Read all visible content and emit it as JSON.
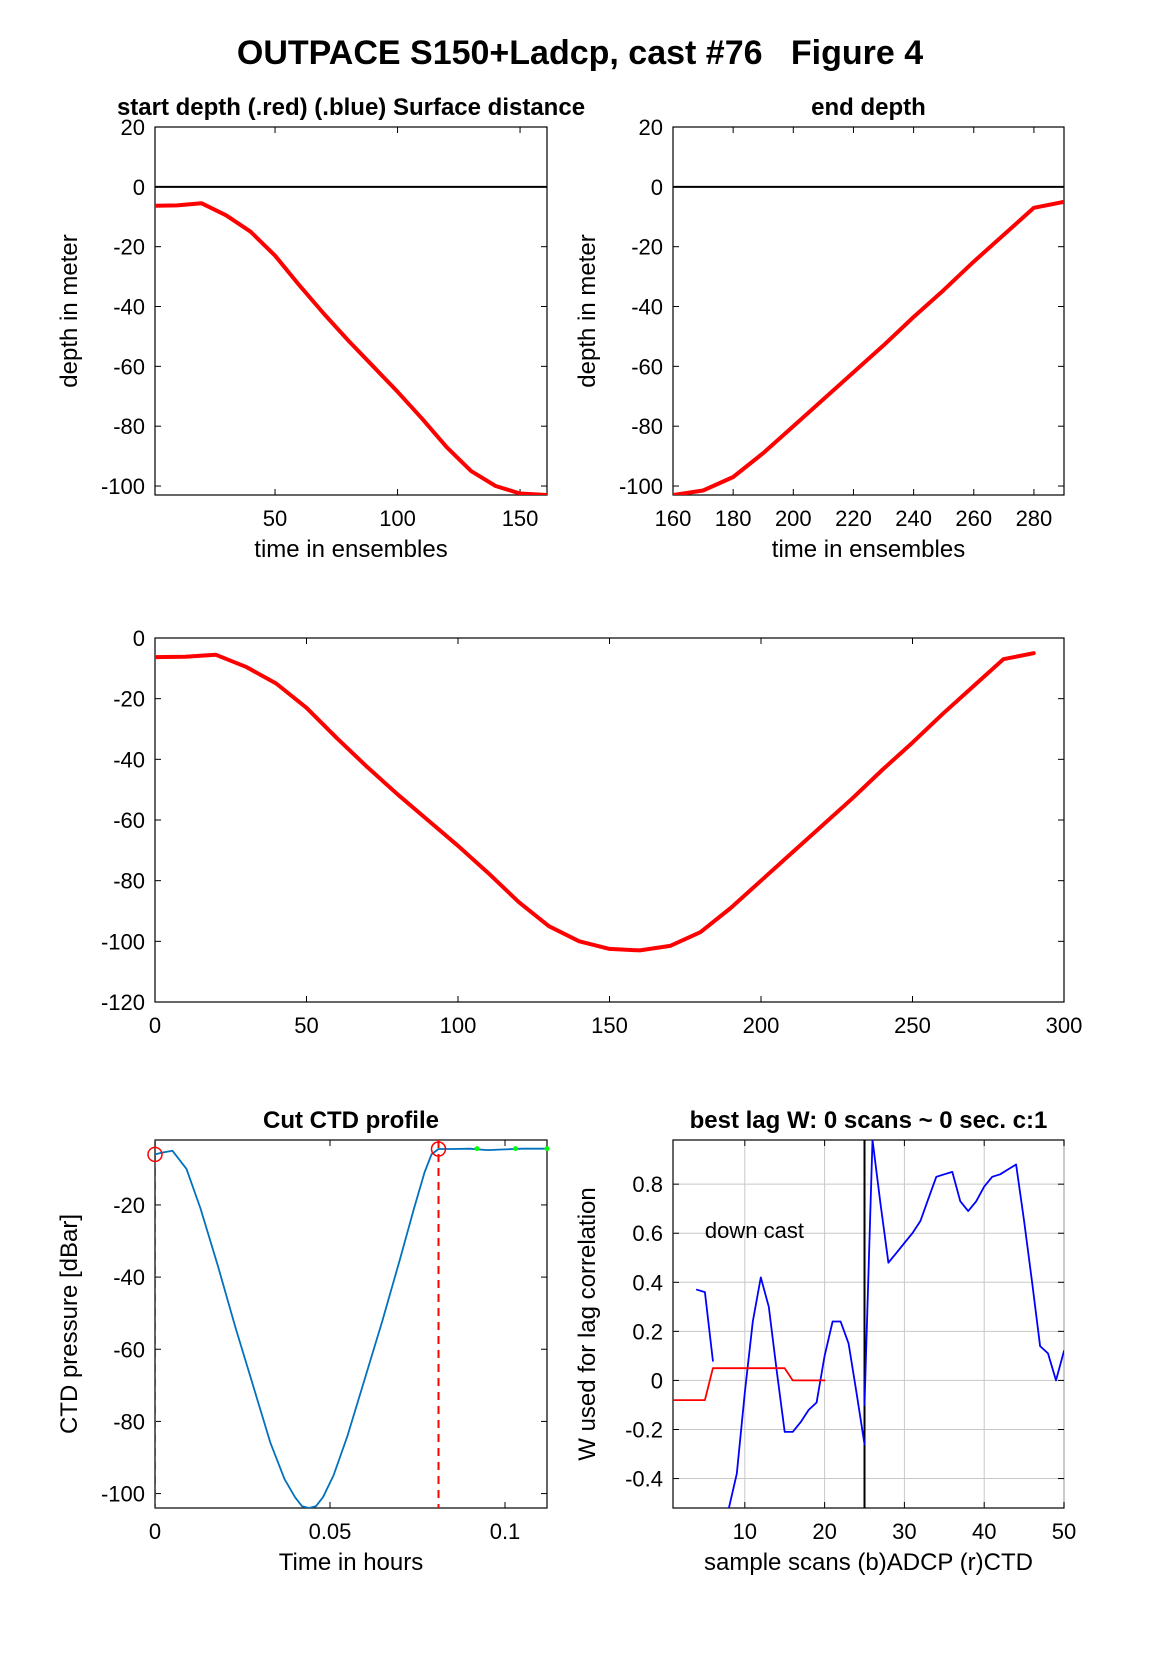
{
  "figure": {
    "title": "OUTPACE S150+Ladcp, cast #76   Figure 4"
  },
  "chart_data": [
    {
      "id": "start_depth",
      "type": "line",
      "title": "start depth (.red) (.blue) Surface distance",
      "xlabel": "time in ensembles",
      "ylabel": "depth in meter",
      "xlim": [
        1,
        161
      ],
      "ylim": [
        -103,
        20
      ],
      "xticks": [
        50,
        100,
        150
      ],
      "yticks": [
        20,
        0,
        -20,
        -40,
        -60,
        -80,
        -100
      ],
      "reference_line_y": 0,
      "series": [
        {
          "color": "#ff0000",
          "x": [
            1,
            10,
            20,
            30,
            40,
            50,
            60,
            70,
            80,
            90,
            100,
            110,
            120,
            130,
            140,
            150,
            161
          ],
          "y": [
            -6.3,
            -6.2,
            -5.5,
            -9.5,
            -15,
            -23,
            -33,
            -42.5,
            -51.5,
            -60,
            -68.5,
            -77.5,
            -87,
            -95,
            -100,
            -102.5,
            -103
          ]
        }
      ],
      "grid": false
    },
    {
      "id": "end_depth",
      "type": "line",
      "title": "end depth",
      "xlabel": "time in ensembles",
      "ylabel": "depth in meter",
      "xlim": [
        160,
        290
      ],
      "ylim": [
        -103,
        20
      ],
      "xticks": [
        160,
        180,
        200,
        220,
        240,
        260,
        280
      ],
      "yticks": [
        20,
        0,
        -20,
        -40,
        -60,
        -80,
        -100
      ],
      "reference_line_y": 0,
      "series": [
        {
          "color": "#ff0000",
          "x": [
            160,
            170,
            180,
            190,
            200,
            210,
            220,
            230,
            240,
            250,
            260,
            270,
            280,
            290
          ],
          "y": [
            -103,
            -101.5,
            -97,
            -89,
            -80,
            -71,
            -62,
            -53,
            -43.5,
            -34.5,
            -25,
            -16,
            -7,
            -5
          ]
        }
      ],
      "grid": false
    },
    {
      "id": "full_depth",
      "type": "line",
      "title": "",
      "xlabel": "",
      "ylabel": "",
      "xlim": [
        0,
        300
      ],
      "ylim": [
        -120,
        0
      ],
      "xticks": [
        0,
        50,
        100,
        150,
        200,
        250,
        300
      ],
      "yticks": [
        0,
        -20,
        -40,
        -60,
        -80,
        -100,
        -120
      ],
      "series": [
        {
          "color": "#ff0000",
          "x": [
            0,
            10,
            20,
            30,
            40,
            50,
            60,
            70,
            80,
            90,
            100,
            110,
            120,
            130,
            140,
            150,
            160,
            170,
            180,
            190,
            200,
            210,
            220,
            230,
            240,
            250,
            260,
            270,
            280,
            290
          ],
          "y": [
            -6.3,
            -6.2,
            -5.5,
            -9.5,
            -15,
            -23,
            -33,
            -42.5,
            -51.5,
            -60,
            -68.5,
            -77.5,
            -87,
            -95,
            -100,
            -102.5,
            -103,
            -101.5,
            -97,
            -89,
            -80,
            -71,
            -62,
            -53,
            -43.5,
            -34.5,
            -25,
            -16,
            -7,
            -5
          ]
        }
      ],
      "grid": false
    },
    {
      "id": "cut_ctd",
      "type": "line",
      "title": "Cut CTD profile",
      "xlabel": "Time in hours",
      "ylabel": "CTD pressure [dBar]",
      "xlim": [
        0,
        0.112
      ],
      "ylim": [
        -104,
        -2
      ],
      "xticks": [
        0,
        0.05,
        0.1
      ],
      "xtick_labels": [
        "0",
        "0.05",
        "0.1"
      ],
      "yticks": [
        -20,
        -40,
        -60,
        -80,
        -100
      ],
      "series": [
        {
          "color": "#0072bd",
          "x": [
            0,
            0.002,
            0.005,
            0.009,
            0.013,
            0.018,
            0.023,
            0.028,
            0.033,
            0.037,
            0.04,
            0.042,
            0.044,
            0.046,
            0.048,
            0.051,
            0.055,
            0.06,
            0.065,
            0.07,
            0.074,
            0.077,
            0.079,
            0.081,
            0.085,
            0.09,
            0.095,
            0.1,
            0.105,
            0.112
          ],
          "y": [
            -6,
            -5.5,
            -5,
            -10,
            -21,
            -37,
            -54,
            -70,
            -86,
            -96,
            -101,
            -103.5,
            -104,
            -103.5,
            -101,
            -95,
            -84,
            -68,
            -52,
            -35,
            -21,
            -11,
            -6,
            -4.5,
            -4.5,
            -4.4,
            -4.8,
            -4.6,
            -4.4,
            -4.4
          ]
        }
      ],
      "markers": [
        {
          "x": 0,
          "y": -6,
          "shape": "circle",
          "color": "#ff0000"
        },
        {
          "x": 0.081,
          "y": -4.5,
          "shape": "circle",
          "color": "#ff0000"
        }
      ],
      "vlines": [
        {
          "x": 0,
          "color": "#ff0000",
          "style": "dashed"
        },
        {
          "x": 0.081,
          "color": "#ff0000",
          "style": "dashed"
        }
      ],
      "green_dots": [
        0.092,
        0.103,
        0.112
      ],
      "grid": false
    },
    {
      "id": "best_lag",
      "type": "line",
      "title": "best lag W: 0 scans ~ 0 sec.  c:1",
      "xlabel": "sample scans (b)ADCP (r)CTD",
      "ylabel": "W used for lag correlation",
      "xlim": [
        1,
        50
      ],
      "ylim": [
        -0.52,
        0.98
      ],
      "xticks": [
        10,
        20,
        30,
        40,
        50
      ],
      "yticks": [
        0.8,
        0.6,
        0.4,
        0.2,
        0,
        -0.2,
        -0.4
      ],
      "yticklabels": [
        "0.8",
        "0.6",
        "0.4",
        "0.2",
        "0",
        "-0.2",
        "-0.4"
      ],
      "annotation": "down cast",
      "vline_x": 25,
      "series": [
        {
          "name": "ADCP",
          "color": "#0000ff",
          "segments": [
            {
              "x": [
                4,
                5,
                6
              ],
              "y": [
                0.37,
                0.36,
                0.08
              ]
            },
            {
              "x": [
                8,
                9,
                10,
                11,
                12,
                13,
                14,
                15,
                16,
                17,
                18,
                19,
                20,
                21,
                22,
                23,
                24,
                25
              ],
              "y": [
                -0.52,
                -0.38,
                -0.05,
                0.24,
                0.42,
                0.3,
                0.04,
                -0.21,
                -0.21,
                -0.17,
                -0.12,
                -0.09,
                0.1,
                0.24,
                0.24,
                0.15,
                -0.05,
                -0.26
              ]
            },
            {
              "x": [
                25,
                26,
                27,
                28,
                29,
                30,
                31,
                32,
                33,
                34,
                35,
                36,
                37,
                38,
                39,
                40,
                41,
                42,
                43,
                44,
                45,
                46,
                47,
                48,
                49,
                50
              ],
              "y": [
                -0.1,
                0.98,
                0.72,
                0.48,
                0.52,
                0.56,
                0.6,
                0.65,
                0.74,
                0.83,
                0.84,
                0.85,
                0.73,
                0.69,
                0.73,
                0.79,
                0.83,
                0.84,
                0.86,
                0.88,
                0.65,
                0.4,
                0.14,
                0.11,
                0.0,
                0.12
              ]
            }
          ]
        },
        {
          "name": "CTD",
          "color": "#ff0000",
          "segments": [
            {
              "x": [
                1,
                2,
                3,
                4,
                5,
                6,
                7,
                8,
                9,
                10,
                11,
                12,
                13,
                14,
                15,
                16,
                17,
                18,
                19,
                20
              ],
              "y": [
                -0.08,
                -0.08,
                -0.08,
                -0.08,
                -0.08,
                0.05,
                0.05,
                0.05,
                0.05,
                0.05,
                0.05,
                0.05,
                0.05,
                0.05,
                0.05,
                0.0,
                0.0,
                0.0,
                0.0,
                0.0
              ]
            }
          ]
        }
      ],
      "grid": true
    }
  ]
}
